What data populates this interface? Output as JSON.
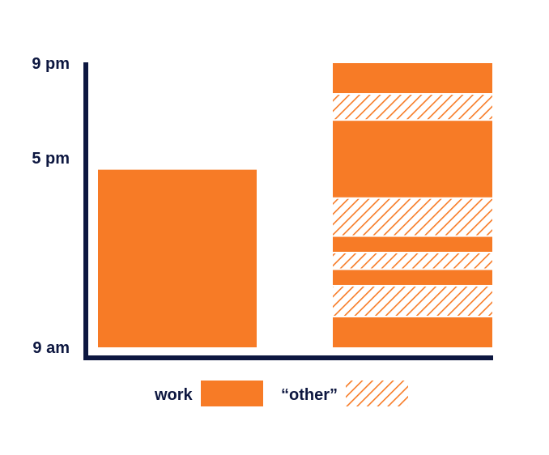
{
  "chart_data": {
    "type": "bar",
    "title": "",
    "xlabel": "",
    "ylabel": "",
    "y_axis": {
      "range_hours": [
        9,
        21
      ],
      "ticks": [
        {
          "value": 9,
          "label": "9 am"
        },
        {
          "value": 17,
          "label": "5 pm"
        },
        {
          "value": 21,
          "label": "9 pm"
        }
      ]
    },
    "bars": [
      {
        "name": "left-bar",
        "segments": [
          {
            "type": "work",
            "start": 9,
            "end": 16.5
          }
        ]
      },
      {
        "name": "right-bar",
        "segments": [
          {
            "type": "work",
            "start": 9,
            "end": 10.3
          },
          {
            "type": "other",
            "start": 10.3,
            "end": 11.6
          },
          {
            "type": "work",
            "start": 11.6,
            "end": 12.3
          },
          {
            "type": "other",
            "start": 12.3,
            "end": 13
          },
          {
            "type": "work",
            "start": 13,
            "end": 13.7
          },
          {
            "type": "other",
            "start": 13.7,
            "end": 15.3
          },
          {
            "type": "work",
            "start": 15.3,
            "end": 18.6
          },
          {
            "type": "other",
            "start": 18.6,
            "end": 19.7
          },
          {
            "type": "work",
            "start": 19.7,
            "end": 21
          }
        ]
      }
    ],
    "legend": {
      "placement": "bottom",
      "items": [
        {
          "key": "work",
          "label": "work",
          "fill": "solid"
        },
        {
          "key": "other",
          "label": "“other”",
          "fill": "hatched"
        }
      ]
    },
    "colors": {
      "accent": "#f77b26",
      "axis": "#0d1740",
      "text": "#0d1740",
      "background": "#ffffff"
    }
  }
}
